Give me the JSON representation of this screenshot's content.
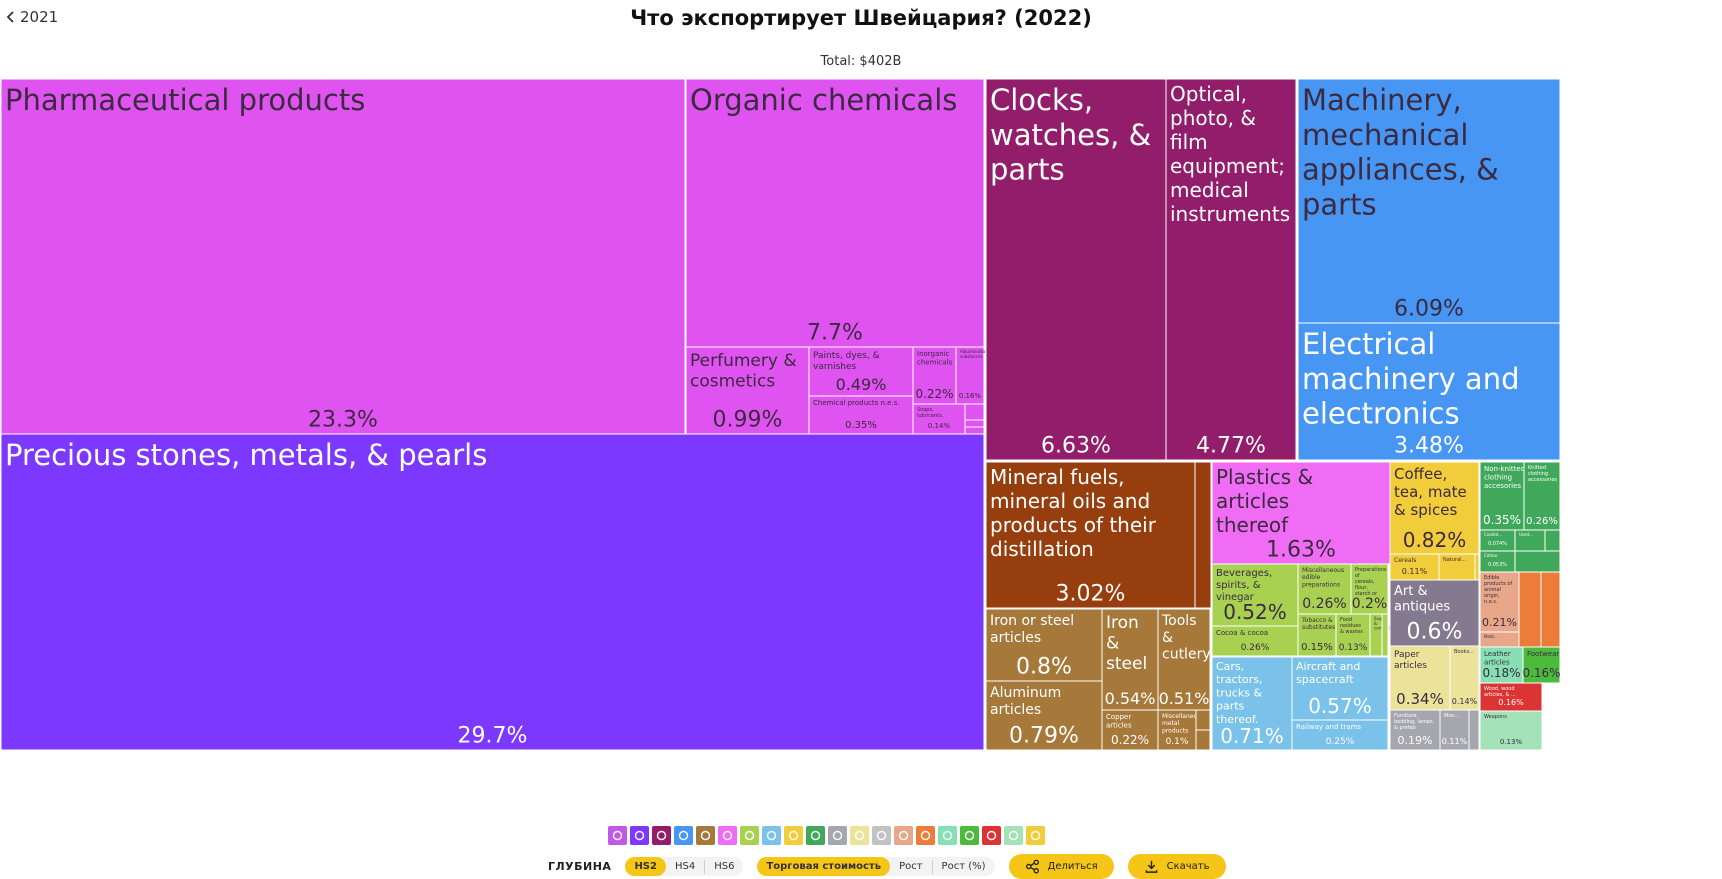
{
  "header": {
    "back_label": "2021",
    "title": "Что экспортирует Швейцария? (2022)",
    "total": "Total: $402B"
  },
  "chart_data": {
    "type": "treemap",
    "title": "Что экспортирует Швейцария? (2022)",
    "total": "$402B",
    "unit": "% of total exports",
    "items": [
      {
        "name": "Pharmaceutical products",
        "value": 23.3,
        "color": "#df53f0"
      },
      {
        "name": "Organic chemicals",
        "value": 7.7,
        "color": "#df53f0"
      },
      {
        "name": "Perfumery & cosmetics",
        "value": 0.99,
        "color": "#df53f0"
      },
      {
        "name": "Paints, dyes, & varnishes",
        "value": 0.49,
        "color": "#df53f0"
      },
      {
        "name": "Chemical products n.e.s.",
        "value": 0.35,
        "color": "#df53f0"
      },
      {
        "name": "Inorganic chemicals",
        "value": 0.22,
        "color": "#df53f0"
      },
      {
        "name": "Soaps, lubricants, waxes, candles...",
        "value": 0.14,
        "color": "#df53f0"
      },
      {
        "name": "Albuminoidal substances",
        "value": 0.16,
        "color": "#df53f0"
      },
      {
        "name": "",
        "value": 0.05,
        "color": "#df53f0"
      },
      {
        "name": "",
        "value": 0.04,
        "color": "#df53f0"
      },
      {
        "name": "",
        "value": 0.03,
        "color": "#df53f0"
      },
      {
        "name": "Precious stones, metals, & pearls",
        "value": 29.7,
        "color": "#7d38fd"
      },
      {
        "name": "Clocks, watches, & parts",
        "value": 6.63,
        "color": "#921d6b"
      },
      {
        "name": "Optical, photo, & film equipment; medical instruments",
        "value": 4.77,
        "color": "#921d6b"
      },
      {
        "name": "Machinery, mechanical appliances, & parts",
        "value": 6.09,
        "color": "#4796f3"
      },
      {
        "name": "Electrical machinery and electronics",
        "value": 3.48,
        "color": "#4796f3"
      },
      {
        "name": "Mineral fuels, mineral oils and products of their distillation",
        "value": 3.02,
        "color": "#973e0f"
      },
      {
        "name": "",
        "value": 0.06,
        "color": "#973e0f"
      },
      {
        "name": "Iron or steel articles",
        "value": 0.8,
        "color": "#a6793a"
      },
      {
        "name": "Aluminum articles",
        "value": 0.79,
        "color": "#a6793a"
      },
      {
        "name": "Iron & steel",
        "value": 0.54,
        "color": "#a6793a"
      },
      {
        "name": "Copper articles",
        "value": 0.22,
        "color": "#a6793a"
      },
      {
        "name": "Tools & cutlery",
        "value": 0.51,
        "color": "#a6793a"
      },
      {
        "name": "Miscellaneous metal products",
        "value": 0.1,
        "color": "#a6793a"
      },
      {
        "name": "",
        "value": 0.04,
        "color": "#a6793a"
      },
      {
        "name": "",
        "value": 0.03,
        "color": "#a6793a"
      },
      {
        "name": "Plastics & articles thereof",
        "value": 1.63,
        "color": "#f06cf4"
      },
      {
        "name": "Beverages, spirits, & vinegar",
        "value": 0.52,
        "color": "#a9d151"
      },
      {
        "name": "Miscellaneous edible preparations",
        "value": 0.26,
        "color": "#a9d151"
      },
      {
        "name": "Preparations of cereals, flour, starch or milk",
        "value": 0.2,
        "color": "#a9d151"
      },
      {
        "name": "Cocoa & cocoa preparations",
        "value": 0.26,
        "color": "#a9d151"
      },
      {
        "name": "Tobacco & substitutes",
        "value": 0.15,
        "color": "#a9d151"
      },
      {
        "name": "Food residues & wastes",
        "value": 0.13,
        "color": "#a9d151"
      },
      {
        "name": "Sugars & confectionery",
        "value": 0.04,
        "color": "#a9d151"
      },
      {
        "name": "",
        "value": 0.03,
        "color": "#a9d151"
      },
      {
        "name": "Cars, tractors, trucks & parts thereof.",
        "value": 0.71,
        "color": "#7bc2ea"
      },
      {
        "name": "Aircraft and spacecraft",
        "value": 0.57,
        "color": "#7bc2ea"
      },
      {
        "name": "Railway and trams",
        "value": 0.25,
        "color": "#7bc2ea"
      },
      {
        "name": "Coffee, tea, mate & spices",
        "value": 0.82,
        "color": "#f2cd3b"
      },
      {
        "name": "Cereals",
        "value": 0.11,
        "color": "#f2cd3b"
      },
      {
        "name": "Natural...",
        "value": 0.08,
        "color": "#f2cd3b"
      },
      {
        "name": "",
        "value": 0.02,
        "color": "#f2cd3b"
      },
      {
        "name": "Art & antiques",
        "value": 0.6,
        "color": "#837a8f"
      },
      {
        "name": "Paper articles",
        "value": 0.34,
        "color": "#ece39b"
      },
      {
        "name": "Books...",
        "value": 0.14,
        "color": "#ece39b"
      },
      {
        "name": "Furniture, bedding, lamps, & prefab buildings",
        "value": 0.19,
        "color": "#a5a6ae"
      },
      {
        "name": "Misc...",
        "value": 0.11,
        "color": "#a5a6ae"
      },
      {
        "name": "",
        "value": 0.03,
        "color": "#a5a6ae"
      },
      {
        "name": "Non-knitted clothing accesories",
        "value": 0.35,
        "color": "#3fa85a"
      },
      {
        "name": "Knitted clothing accessories",
        "value": 0.26,
        "color": "#3fa85a"
      },
      {
        "name": "Coated...",
        "value": 0.074,
        "color": "#3fa85a"
      },
      {
        "name": "Used...",
        "value": 0.05,
        "color": "#3fa85a"
      },
      {
        "name": "Cotton",
        "value": 0.053,
        "color": "#3fa85a"
      },
      {
        "name": "",
        "value": 0.03,
        "color": "#3fa85a"
      },
      {
        "name": "",
        "value": 0.03,
        "color": "#3fa85a"
      },
      {
        "name": "Edible products of animal origin, n.e.s.",
        "value": 0.21,
        "color": "#e9a789"
      },
      {
        "name": "Meat...",
        "value": 0.05,
        "color": "#e9a789"
      },
      {
        "name": "",
        "value": 0.11,
        "color": "#ee7c39"
      },
      {
        "name": "",
        "value": 0.1,
        "color": "#ee7c39"
      },
      {
        "name": "Leather articles",
        "value": 0.18,
        "color": "#86e0b4"
      },
      {
        "name": "Footwear",
        "value": 0.16,
        "color": "#4cbb3c"
      },
      {
        "name": "Wood, wood articles, & ...",
        "value": 0.16,
        "color": "#dc3434"
      },
      {
        "name": "Weapons",
        "value": 0.13,
        "color": "#a2e2b6"
      }
    ]
  },
  "categories": [
    {
      "name": "chemicals",
      "color": "#c458e6"
    },
    {
      "name": "precious-stones",
      "color": "#7d38fd"
    },
    {
      "name": "instruments",
      "color": "#921d6b"
    },
    {
      "name": "machinery",
      "color": "#4796f3"
    },
    {
      "name": "metals",
      "color": "#a6793a"
    },
    {
      "name": "plastics",
      "color": "#f06cf4"
    },
    {
      "name": "vegetable-products",
      "color": "#a9d151"
    },
    {
      "name": "transportation",
      "color": "#7bc2ea"
    },
    {
      "name": "foodstuffs",
      "color": "#f2cd3b"
    },
    {
      "name": "textiles",
      "color": "#3fa85a"
    },
    {
      "name": "furniture",
      "color": "#a5a6ae"
    },
    {
      "name": "paper",
      "color": "#ece39b"
    },
    {
      "name": "stone-glass",
      "color": "#c2c2c2"
    },
    {
      "name": "animal-products",
      "color": "#e9a789"
    },
    {
      "name": "animal-hides",
      "color": "#ee7c39"
    },
    {
      "name": "leather",
      "color": "#86e0b4"
    },
    {
      "name": "footwear",
      "color": "#4cbb3c"
    },
    {
      "name": "wood",
      "color": "#dc3434"
    },
    {
      "name": "weapons",
      "color": "#a2e2b6"
    },
    {
      "name": "art",
      "color": "#f2cd3b"
    }
  ],
  "controls": {
    "depth_label": "ГЛУБИНА",
    "depth_options": [
      "HS2",
      "HS4",
      "HS6"
    ],
    "measure_options": [
      "Торговая стоимость",
      "Рост",
      "Рост (%)"
    ],
    "share_label": "Делиться",
    "download_label": "Скачать"
  }
}
